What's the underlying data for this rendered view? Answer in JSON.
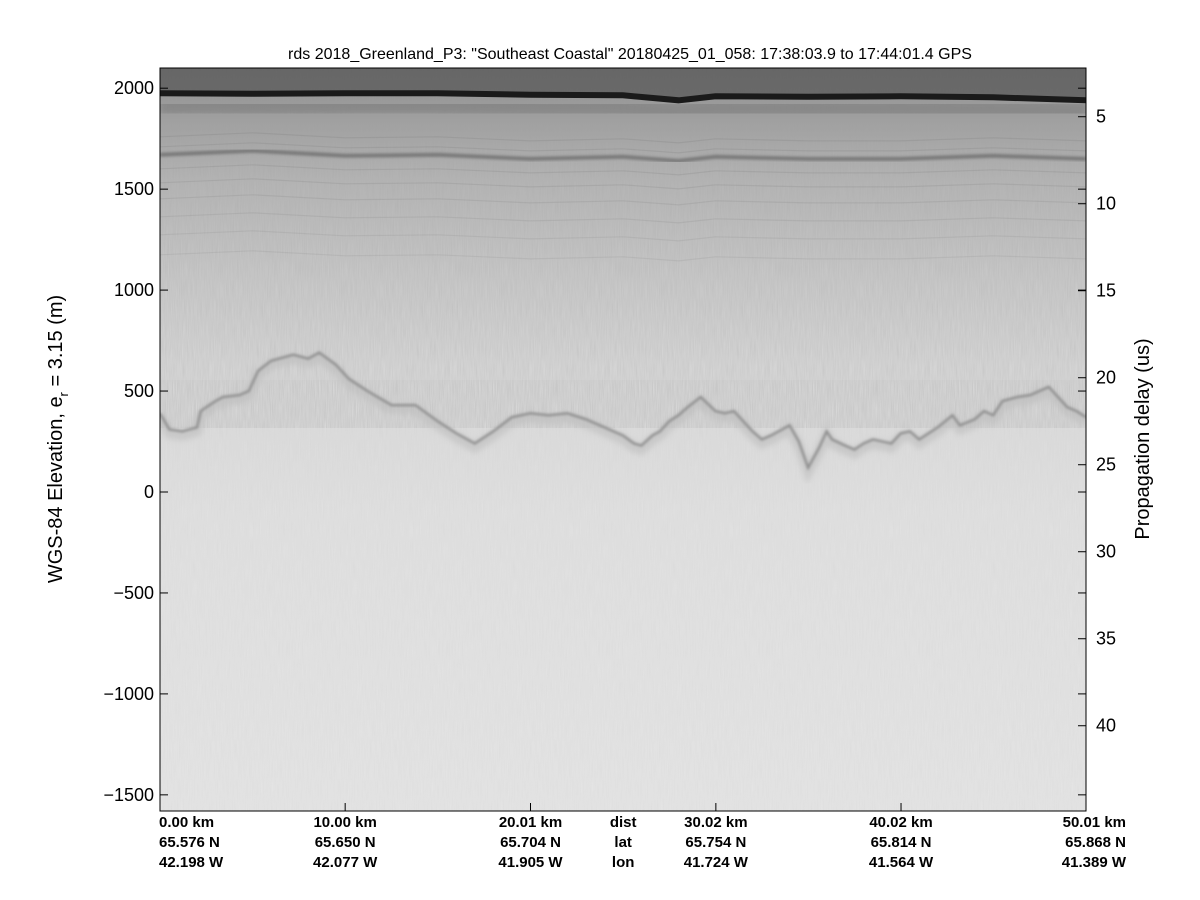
{
  "chart_data": {
    "type": "heatmap",
    "title": "rds 2018_Greenland_P3: \"Southeast Coastal\"  20180425_01_058: 17:38:03.9 to 17:44:01.4 GPS",
    "ylabel_left": "WGS-84 Elevation, e",
    "ylabel_left_sub": "r",
    "ylabel_left_tail": " = 3.15 (m)",
    "ylabel_right": "Propagation delay (us)",
    "ylim": [
      -1580,
      2100
    ],
    "xlim_km": [
      0,
      50.01
    ],
    "y_ticks": [
      2000,
      1500,
      1000,
      500,
      0,
      -500,
      -1000,
      -1500
    ],
    "y_tick_labels": [
      "2000",
      "1500",
      "1000",
      "500",
      "0",
      "−500",
      "−1000",
      "−1500"
    ],
    "right_ticks": [
      5,
      10,
      15,
      20,
      25,
      30,
      35,
      40
    ],
    "right_tick_labels": [
      "5",
      "10",
      "15",
      "20",
      "25",
      "30",
      "35",
      "40"
    ],
    "right_axis_map": {
      "delay_us_at_top": 2.2,
      "delay_us_at_bottom": 44.9
    },
    "grid": false,
    "colormap": "grayscale (dark = strong return)",
    "x_positions_km": [
      0,
      10.0,
      20.01,
      30.02,
      40.02,
      50.01
    ],
    "x_ticks": [
      {
        "dist": "0.00 km",
        "lat": "65.576 N",
        "lon": "42.198 W"
      },
      {
        "dist": "10.00 km",
        "lat": "65.650 N",
        "lon": "42.077 W"
      },
      {
        "dist": "20.01 km",
        "lat": "65.704 N",
        "lon": "41.905 W"
      },
      {
        "dist": "30.02 km",
        "lat": "65.754 N",
        "lon": "41.724 W"
      },
      {
        "dist": "40.02 km",
        "lat": "65.814 N",
        "lon": "41.564 W"
      },
      {
        "dist": "50.01 km",
        "lat": "65.868 N",
        "lon": "41.389 W"
      }
    ],
    "row_labels": {
      "dist": "dist",
      "lat": "lat",
      "lon": "lon"
    },
    "series": [
      {
        "name": "surface",
        "x_km": [
          0,
          5,
          10,
          15,
          20,
          25,
          28,
          30,
          35,
          40,
          45,
          50.01
        ],
        "y_m": [
          1975,
          1972,
          1975,
          1975,
          1968,
          1965,
          1940,
          1960,
          1958,
          1960,
          1955,
          1940
        ]
      },
      {
        "name": "internal layer",
        "x_km": [
          0,
          5,
          10,
          15,
          20,
          25,
          28,
          30,
          35,
          40,
          45,
          50.01
        ],
        "y_m": [
          1670,
          1690,
          1665,
          1670,
          1650,
          1660,
          1640,
          1660,
          1650,
          1650,
          1665,
          1650
        ]
      },
      {
        "name": "bed",
        "x_km": [
          0,
          0.5,
          1.2,
          2.0,
          2.2,
          2.5,
          3.0,
          3.4,
          4.3,
          4.8,
          5.3,
          6.0,
          7.2,
          8.0,
          8.6,
          9.5,
          10.2,
          11.2,
          12.5,
          13.8,
          15.0,
          16.0,
          17.0,
          18.0,
          19.0,
          20.0,
          21.0,
          22.0,
          23.0,
          24.0,
          25.0,
          25.6,
          26.0,
          26.6,
          27.0,
          27.5,
          28.0,
          28.5,
          29.2,
          30.0,
          30.5,
          31.0,
          32.0,
          32.5,
          33.0,
          34.0,
          34.5,
          35.0,
          35.6,
          36.0,
          36.3,
          37.0,
          37.5,
          38.0,
          38.5,
          39.0,
          39.5,
          40.0,
          40.5,
          41.0,
          42.0,
          42.8,
          43.2,
          44.0,
          44.5,
          45.0,
          45.5,
          46.3,
          47.0,
          47.5,
          48.0,
          48.5,
          49.0,
          49.5,
          50.01
        ],
        "y_m": [
          390,
          310,
          300,
          320,
          400,
          420,
          450,
          470,
          480,
          500,
          600,
          650,
          680,
          660,
          690,
          630,
          560,
          500,
          430,
          430,
          350,
          290,
          240,
          300,
          370,
          390,
          380,
          390,
          360,
          320,
          280,
          240,
          230,
          280,
          300,
          350,
          380,
          420,
          470,
          400,
          390,
          400,
          300,
          260,
          280,
          330,
          250,
          120,
          220,
          300,
          260,
          230,
          210,
          240,
          260,
          250,
          240,
          290,
          300,
          260,
          320,
          380,
          330,
          360,
          400,
          380,
          450,
          470,
          480,
          500,
          520,
          470,
          420,
          400,
          370
        ]
      }
    ]
  }
}
